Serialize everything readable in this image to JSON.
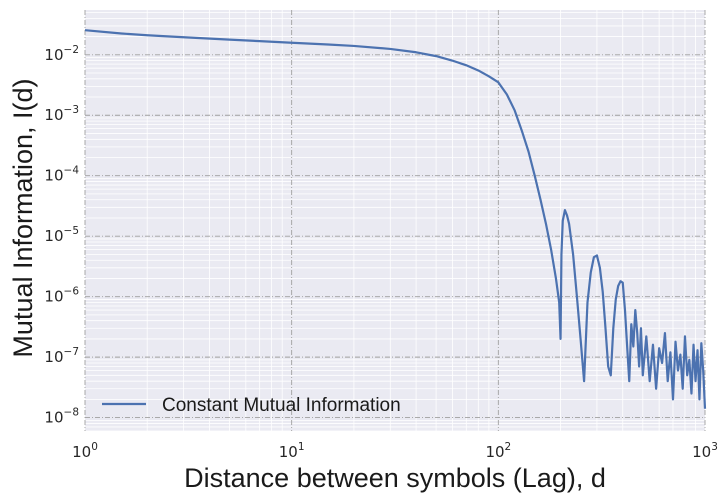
{
  "chart_data": {
    "type": "line",
    "title": "",
    "xlabel": "Distance between symbols (Lag), d",
    "ylabel": "Mutual Information, I(d)",
    "xscale": "log",
    "yscale": "log",
    "xlim": [
      1,
      1000
    ],
    "ylim": [
      6e-09,
      0.055
    ],
    "grid": true,
    "legend_placement": "lower-left",
    "background": "#eaeaf2",
    "x_ticks": [
      {
        "base": "10",
        "exp": "0"
      },
      {
        "base": "10",
        "exp": "1"
      },
      {
        "base": "10",
        "exp": "2"
      },
      {
        "base": "10",
        "exp": "3"
      }
    ],
    "y_ticks": [
      {
        "base": "10",
        "exp": "−8"
      },
      {
        "base": "10",
        "exp": "−7"
      },
      {
        "base": "10",
        "exp": "−6"
      },
      {
        "base": "10",
        "exp": "−5"
      },
      {
        "base": "10",
        "exp": "−4"
      },
      {
        "base": "10",
        "exp": "−3"
      },
      {
        "base": "10",
        "exp": "−2"
      }
    ],
    "series": [
      {
        "name": "Constant Mutual Information",
        "color": "#4c72b0",
        "x": [
          1,
          1.5,
          2,
          3,
          5,
          7,
          10,
          15,
          20,
          30,
          40,
          50,
          60,
          70,
          80,
          90,
          100,
          110,
          120,
          130,
          140,
          150,
          160,
          170,
          180,
          190,
          197,
          200,
          202,
          205,
          210,
          215,
          220,
          230,
          240,
          250,
          260,
          270,
          280,
          290,
          300,
          310,
          320,
          330,
          340,
          350,
          360,
          370,
          380,
          390,
          400,
          410,
          420,
          430,
          440,
          450,
          460,
          470,
          480,
          490,
          500,
          520,
          540,
          560,
          580,
          600,
          620,
          640,
          660,
          680,
          700,
          720,
          740,
          760,
          780,
          800,
          820,
          840,
          860,
          880,
          900,
          920,
          940,
          960,
          980,
          1000
        ],
        "y": [
          0.0255,
          0.0225,
          0.021,
          0.0195,
          0.0178,
          0.0168,
          0.0158,
          0.0148,
          0.014,
          0.0125,
          0.011,
          0.0095,
          0.008,
          0.0067,
          0.0055,
          0.0044,
          0.0035,
          0.0022,
          0.0012,
          0.00055,
          0.00025,
          0.0001,
          4e-05,
          1.6e-05,
          6e-06,
          2e-06,
          8e-07,
          2e-07,
          5e-06,
          1.8e-05,
          2.7e-05,
          2.2e-05,
          1.6e-05,
          5e-06,
          1e-06,
          2e-07,
          4e-08,
          8e-07,
          2.5e-06,
          4.5e-06,
          4.8e-06,
          3e-06,
          1.2e-06,
          3e-07,
          7e-08,
          5e-08,
          3e-07,
          9e-07,
          1.5e-06,
          1.8e-06,
          1.7e-06,
          6e-07,
          1.5e-07,
          4e-08,
          3.5e-07,
          1.5e-07,
          6e-07,
          2.5e-07,
          7e-08,
          3e-07,
          5e-08,
          2.2e-07,
          4e-08,
          1.6e-07,
          3e-08,
          1.4e-07,
          8e-08,
          2.5e-07,
          4e-08,
          1.2e-07,
          2e-08,
          1.8e-07,
          6e-08,
          1.1e-07,
          3e-08,
          2.2e-07,
          5e-08,
          9e-08,
          2.5e-08,
          1.6e-07,
          4e-08,
          1.3e-07,
          2e-08,
          1.7e-07,
          6e-08,
          1.4e-08
        ]
      }
    ]
  }
}
